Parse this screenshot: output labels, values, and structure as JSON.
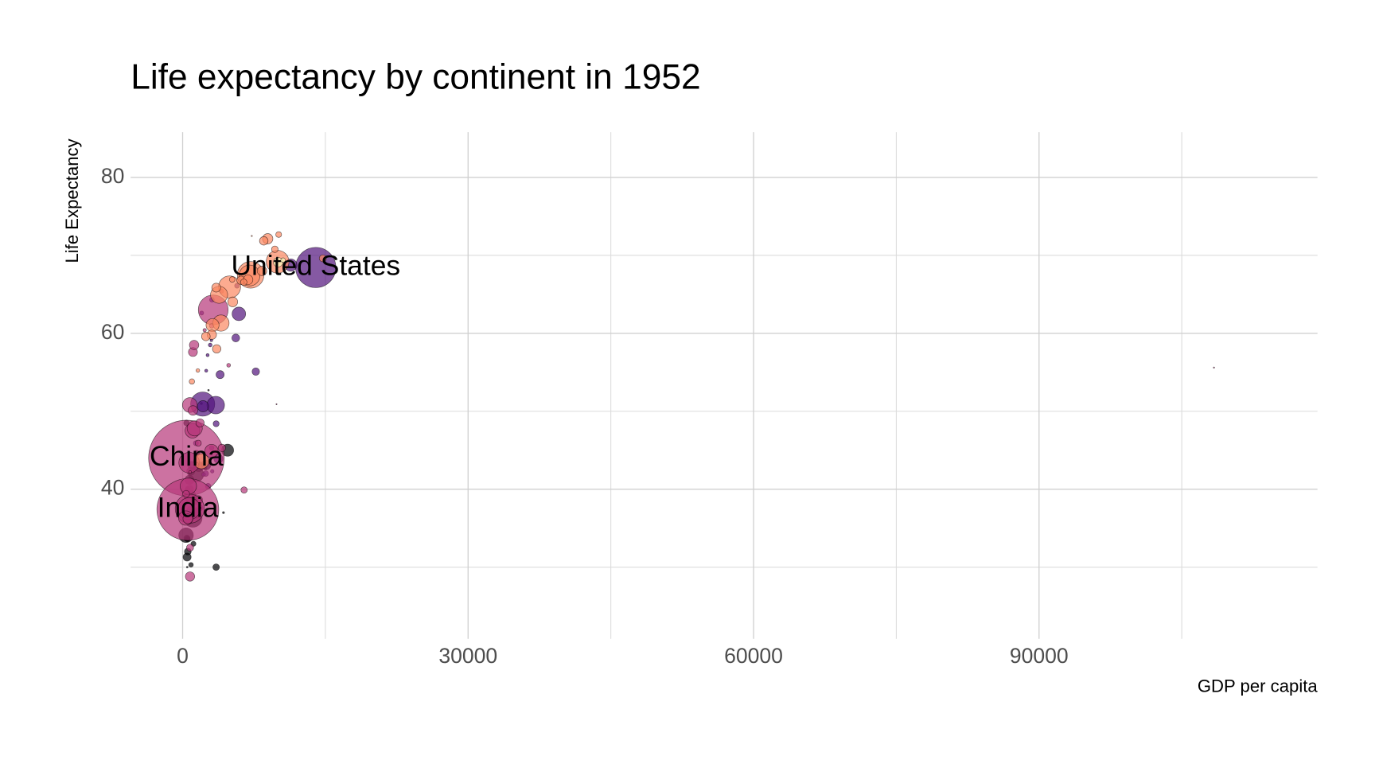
{
  "chart_data": {
    "type": "scatter",
    "title": "Life expectancy by continent in 1952",
    "x_label": "GDP per capita",
    "y_label": "Life Expectancy",
    "xlim": [
      -5460,
      119260
    ],
    "ylim": [
      20.8,
      85.8
    ],
    "xticks": [
      0,
      30000,
      60000,
      90000
    ],
    "yticks": [
      40,
      60,
      80
    ],
    "xminor": [
      15000,
      45000,
      75000,
      105000
    ],
    "yminor": [
      30,
      50,
      70
    ],
    "grid": true,
    "opacity": 0.7,
    "series": [
      {
        "color": "#000004",
        "x": [
          4725,
          1077,
          1419,
          362,
          1688,
          781,
          2388,
          4293,
          3521,
          880,
          485,
          469,
          2719,
          1968,
          2449,
          854,
          717,
          1615,
          735,
          911,
          1443,
          1173,
          407,
          452,
          543,
          762,
          1450,
          510,
          1469,
          493,
          1136
        ],
        "values": [
          45.0,
          36.3,
          41.9,
          34.1,
          42.9,
          39.1,
          42.7,
          37.0,
          30.0,
          30.3,
          30.0,
          31.3,
          52.7,
          51.0,
          43.1,
          42.3,
          41.2,
          38.6,
          40.0,
          43.1,
          36.7,
          38.5,
          48.5,
          33.7,
          32.0,
          37.4,
          37.3,
          33.6,
          44.6,
          40.0,
          33.0
        ],
        "sizes": [
          14.3,
          33.1,
          22.2,
          20.9,
          9.9,
          14.1,
          1.0,
          0.4,
          4.2,
          2.1,
          0.28,
          6.4,
          0.26,
          0.5,
          9.3,
          6.5,
          8.3,
          8.5,
          5.8,
          5.6,
          4.8,
          5.0,
          3.1,
          3.8,
          4.5,
          3.4,
          2.8,
          2.7,
          3.6,
          2.5,
          2.5
        ]
      },
      {
        "color": "#51127C",
        "x": [
          13990,
          11367,
          5911,
          2109,
          3478,
          7690,
          2144,
          3759,
          3940,
          5587,
          5717,
          2677,
          1840,
          2428,
          2194,
          3082,
          2899,
          3023,
          3522,
          1397,
          2001,
          2480,
          2627,
          3112,
          3048
        ],
        "values": [
          68.44,
          68.75,
          62.49,
          50.92,
          50.79,
          55.09,
          50.64,
          43.9,
          54.7,
          59.4,
          66.1,
          40.4,
          37.6,
          42.0,
          41.9,
          64.3,
          58.5,
          59.1,
          48.4,
          45.9,
          62.6,
          55.2,
          57.2,
          42.3,
          45.3
        ],
        "sizes": [
          157.6,
          14.8,
          17.9,
          56.6,
          30.1,
          5.4,
          12.4,
          8.0,
          6.4,
          6.0,
          2.3,
          2.9,
          3.2,
          3.1,
          1.5,
          2.2,
          1.4,
          0.66,
          3.5,
          2.5,
          1.6,
          0.9,
          0.93,
          1.2,
          2.0
        ]
      },
      {
        "color": "#B63679",
        "x": [
          400,
          547,
          108382,
          3217,
          750,
          685,
          684,
          779,
          4086,
          6460,
          9867,
          4130,
          3035,
          3054,
          1031,
          1273,
          1084,
          1207,
          758,
          605,
          4835,
          2315,
          1831,
          331,
          546,
          368,
          782,
          786,
          1547,
          1828,
          1643,
          1516,
          1088
        ],
        "values": [
          44.0,
          37.4,
          55.6,
          63.0,
          37.5,
          43.4,
          37.5,
          28.8,
          65.4,
          39.9,
          50.9,
          45.3,
          44.9,
          60.96,
          47.5,
          47.8,
          57.6,
          58.5,
          50.8,
          40.4,
          55.9,
          60.4,
          48.5,
          36.3,
          36.2,
          39.4,
          32.5,
          42.2,
          43.2,
          37.6,
          45.9,
          43.2,
          50.1
        ],
        "sizes": [
          556.3,
          372.0,
          0.16,
          86.5,
          82.1,
          41.3,
          46.9,
          8.4,
          1.6,
          4.0,
          0.12,
          5.4,
          17.3,
          2.1,
          20.9,
          22.4,
          7.9,
          8.6,
          21.3,
          26.2,
          1.4,
          1.1,
          6.7,
          20.1,
          9.2,
          4.7,
          4.9,
          0.8,
          0.6,
          0.5,
          3.7,
          1.0,
          8.9
        ]
      },
      {
        "color": "#FB8861",
        "x": [
          7144,
          9980,
          7030,
          4931,
          3834,
          4029,
          1969,
          3145,
          3581,
          8942,
          10095,
          8528,
          14734,
          9692,
          8343,
          6137,
          6876,
          5264,
          3068,
          3531,
          5210,
          6424,
          2444,
          1601,
          974,
          7268
        ],
        "values": [
          67.5,
          69.18,
          67.41,
          65.94,
          64.94,
          61.31,
          43.59,
          61.05,
          58.0,
          72.13,
          72.67,
          71.86,
          69.62,
          70.78,
          68.0,
          66.8,
          66.87,
          64.03,
          59.82,
          65.86,
          66.91,
          66.55,
          59.6,
          55.23,
          53.82,
          72.49
        ],
        "sizes": [
          69.1,
          50.4,
          42.5,
          47.7,
          28.5,
          25.7,
          22.2,
          16.6,
          6.9,
          10.4,
          3.3,
          7.1,
          4.8,
          4.3,
          8.7,
          6.9,
          9.1,
          9.5,
          8.5,
          7.7,
          3.0,
          4.1,
          7.3,
          1.3,
          2.8,
          0.15
        ]
      },
      {
        "color": "#FCFDBF",
        "x": [
          10040,
          10557
        ],
        "values": [
          69.12,
          69.39
        ],
        "sizes": [
          8.7,
          1.99
        ]
      }
    ],
    "annotations": [
      {
        "text": "United States",
        "x": 13990,
        "y": 68.44
      },
      {
        "text": "China",
        "x": 400,
        "y": 44.0
      },
      {
        "text": "India",
        "x": 547,
        "y": 37.4
      }
    ]
  }
}
